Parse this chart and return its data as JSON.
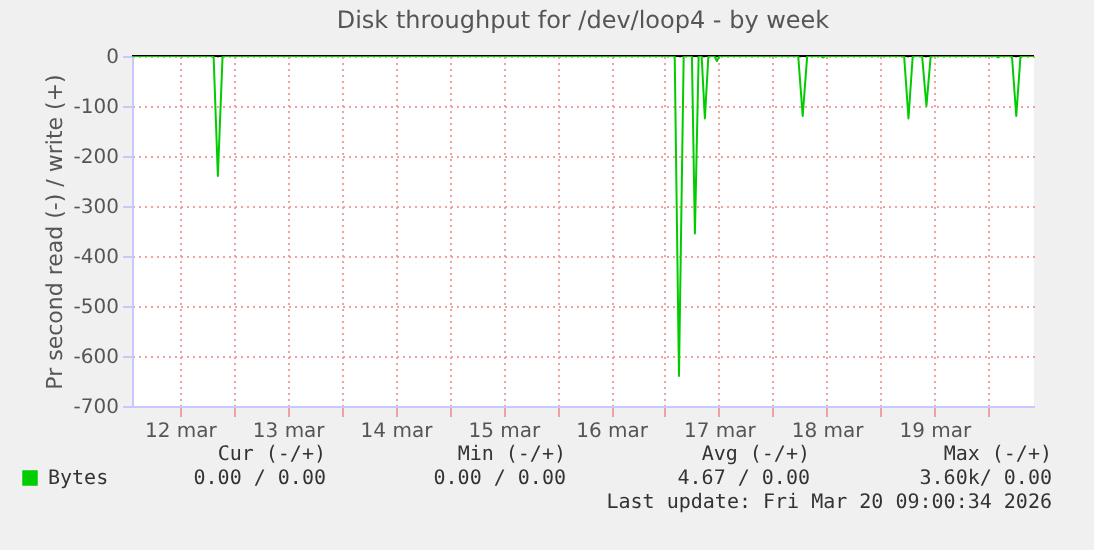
{
  "chart_data": {
    "type": "line",
    "title": "Disk throughput for /dev/loop4 - by week",
    "ylabel": "Pr second read (-) / write (+)",
    "x": [
      "2026-03-12T01:20",
      "2026-03-12T19:30",
      "2026-03-12T20:27",
      "2026-03-12T21:30",
      "2026-03-17T02:10",
      "2026-03-17T03:07",
      "2026-03-17T04:10",
      "2026-03-17T06:00",
      "2026-03-17T06:40",
      "2026-03-17T07:30",
      "2026-03-17T08:10",
      "2026-03-17T08:53",
      "2026-03-17T09:40",
      "2026-03-17T11:00",
      "2026-03-17T11:33",
      "2026-03-17T12:10",
      "2026-03-18T05:40",
      "2026-03-18T06:40",
      "2026-03-18T07:40",
      "2026-03-18T10:40",
      "2026-03-18T11:10",
      "2026-03-18T11:40",
      "2026-03-19T05:15",
      "2026-03-19T06:13",
      "2026-03-19T07:10",
      "2026-03-19T09:15",
      "2026-03-19T10:13",
      "2026-03-19T11:10",
      "2026-03-20T01:40",
      "2026-03-20T02:10",
      "2026-03-20T02:40",
      "2026-03-20T05:15",
      "2026-03-20T06:13",
      "2026-03-20T07:10",
      "2026-03-20T10:10"
    ],
    "series": [
      {
        "name": "Bytes",
        "color": "#00cc00",
        "values": [
          0,
          0,
          -240,
          0,
          0,
          -640,
          0,
          0,
          -355,
          0,
          0,
          -125,
          0,
          0,
          -10,
          0,
          0,
          -120,
          0,
          0,
          -3,
          0,
          0,
          -125,
          0,
          0,
          -100,
          0,
          0,
          -3,
          0,
          0,
          -120,
          0,
          0
        ]
      }
    ],
    "xlim": [
      "2026-03-12T01:20",
      "2026-03-20T10:10"
    ],
    "xticks": [
      {
        "value": "2026-03-12T12:00",
        "label": "12 mar"
      },
      {
        "value": "2026-03-13T00:00",
        "label": null
      },
      {
        "value": "2026-03-13T12:00",
        "label": "13 mar"
      },
      {
        "value": "2026-03-14T00:00",
        "label": null
      },
      {
        "value": "2026-03-14T12:00",
        "label": "14 mar"
      },
      {
        "value": "2026-03-15T00:00",
        "label": null
      },
      {
        "value": "2026-03-15T12:00",
        "label": "15 mar"
      },
      {
        "value": "2026-03-16T00:00",
        "label": null
      },
      {
        "value": "2026-03-16T12:00",
        "label": "16 mar"
      },
      {
        "value": "2026-03-17T00:00",
        "label": null
      },
      {
        "value": "2026-03-17T12:00",
        "label": "17 mar"
      },
      {
        "value": "2026-03-18T00:00",
        "label": null
      },
      {
        "value": "2026-03-18T12:00",
        "label": "18 mar"
      },
      {
        "value": "2026-03-19T00:00",
        "label": null
      },
      {
        "value": "2026-03-19T12:00",
        "label": "19 mar"
      },
      {
        "value": "2026-03-20T00:00",
        "label": null
      }
    ],
    "ylim": [
      -700,
      0
    ],
    "yticks": [
      -700,
      -600,
      -500,
      -400,
      -300,
      -200,
      -100,
      0
    ],
    "grid": true,
    "legend": "bottom left",
    "annotations": [
      "Cur (-/+)",
      "Min (-/+)",
      "Avg (-/+)",
      "Max (-/+)",
      "0.00 /    0.00",
      "0.00 /    0.00",
      "4.67 /    0.00",
      "3.60k/    0.00",
      "Last update: Fri Mar 20 09:00:34 2026"
    ]
  }
}
